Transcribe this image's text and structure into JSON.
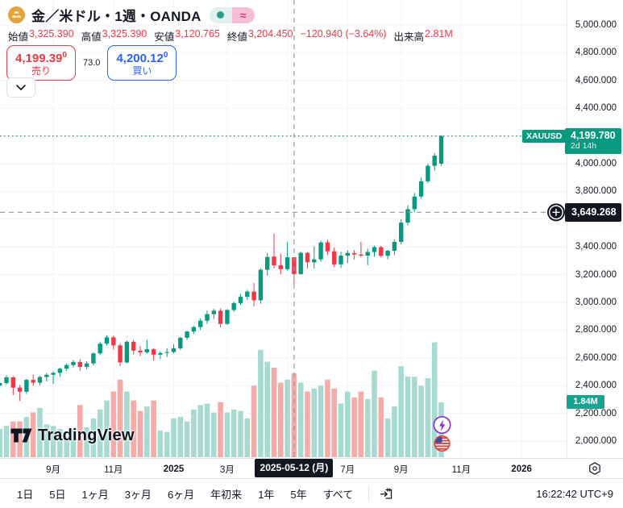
{
  "header": {
    "title": "金／米ドル・1週・OANDA",
    "status": {
      "market_dot_color": "#2A9D8F",
      "delay_symbol": "≈"
    },
    "ohlc": {
      "open_label": "始値",
      "open": "3,325.390",
      "high_label": "高値",
      "high": "3,325.390",
      "low_label": "安値",
      "low": "3,120.765",
      "close_label": "終値",
      "close": "3,204.450",
      "change": "−120.940 (−3.64%)",
      "vol_label": "出来高",
      "vol": "2.81M"
    },
    "quote": {
      "sell_price": "4,199.39",
      "sell_pip": "0",
      "sell_label": "売り",
      "spread": "73.0",
      "buy_price": "4,200.12",
      "buy_pip": "0",
      "buy_label": "買い"
    }
  },
  "watermark": {
    "text": "TradingView"
  },
  "chart_data": {
    "type": "candlestick+volume",
    "symbol": "XAUUSD",
    "timeframe": "1W",
    "exchange": "OANDA",
    "ylim": [
      1950,
      5050
    ],
    "grid_price_step": 200,
    "price_ticks": [
      {
        "p": 5000,
        "label": "5,000.000"
      },
      {
        "p": 4800,
        "label": "4,800.000"
      },
      {
        "p": 4600,
        "label": "4,600.000"
      },
      {
        "p": 4400,
        "label": "4,400.000"
      },
      {
        "p": 4000,
        "label": "4,000.000"
      },
      {
        "p": 3800,
        "label": "3,800.000"
      },
      {
        "p": 3400,
        "label": "3,400.000"
      },
      {
        "p": 3200,
        "label": "3,200.000"
      },
      {
        "p": 3000,
        "label": "3,000.000"
      },
      {
        "p": 2800,
        "label": "2,800.000"
      },
      {
        "p": 2600,
        "label": "2,600.000"
      },
      {
        "p": 2400,
        "label": "2,400.000"
      },
      {
        "p": 2200,
        "label": "2,200.000"
      },
      {
        "p": 2000,
        "label": "2,000.000"
      }
    ],
    "time_ticks": [
      {
        "label": "9月",
        "week": 8,
        "bold": false
      },
      {
        "label": "11月",
        "week": 17,
        "bold": false
      },
      {
        "label": "2025",
        "week": 26,
        "bold": true
      },
      {
        "label": "3月",
        "week": 34,
        "bold": false
      },
      {
        "label": "7月",
        "week": 52,
        "bold": false
      },
      {
        "label": "9月",
        "week": 60,
        "bold": false
      },
      {
        "label": "11月",
        "week": 69,
        "bold": false
      },
      {
        "label": "2026",
        "week": 78,
        "bold": true
      }
    ],
    "grid_weeks": [
      8,
      17,
      26,
      34,
      43,
      52,
      60,
      69,
      78
    ],
    "last": {
      "symbol": "XAUUSD",
      "value": 4199.78,
      "label": "4,199.780",
      "countdown": "2d 14h"
    },
    "crosshair": {
      "week": 44,
      "price": 3649.268,
      "price_label": "3,649.268",
      "date_label": "2025-05-12 (月)"
    },
    "volume_badge": {
      "value": 1.84,
      "label": "1.84M"
    },
    "events": [
      {
        "name": "economic-event-lightning",
        "week": 66
      },
      {
        "name": "economic-event-us-flag",
        "week": 66
      }
    ],
    "candle_columns": [
      "week_start",
      "open",
      "high",
      "low",
      "close",
      "volume_M"
    ],
    "candles": [
      [
        "2024-07-08",
        2400,
        2424,
        2388,
        2418,
        0.95
      ],
      [
        "2024-07-15",
        2418,
        2476,
        2407,
        2459,
        1.05
      ],
      [
        "2024-07-22",
        2459,
        2468,
        2331,
        2385,
        1.2
      ],
      [
        "2024-07-29",
        2385,
        2405,
        2290,
        2356,
        1.2
      ],
      [
        "2024-08-05",
        2356,
        2448,
        2340,
        2441,
        1.35
      ],
      [
        "2024-08-12",
        2441,
        2480,
        2398,
        2421,
        1.5
      ],
      [
        "2024-08-19",
        2421,
        2472,
        2402,
        2462,
        1.65
      ],
      [
        "2024-08-26",
        2462,
        2490,
        2430,
        2478,
        1.1
      ],
      [
        "2024-09-02",
        2478,
        2502,
        2412,
        2492,
        1.05
      ],
      [
        "2024-09-09",
        2492,
        2530,
        2465,
        2522,
        0.95
      ],
      [
        "2024-09-16",
        2522,
        2560,
        2505,
        2548,
        0.7
      ],
      [
        "2024-09-23",
        2548,
        2585,
        2532,
        2570,
        0.95
      ],
      [
        "2024-09-30",
        2570,
        2590,
        2505,
        2535,
        1.75
      ],
      [
        "2024-10-07",
        2535,
        2575,
        2518,
        2560,
        1.0
      ],
      [
        "2024-10-14",
        2560,
        2640,
        2545,
        2632,
        1.3
      ],
      [
        "2024-10-21",
        2632,
        2715,
        2620,
        2702,
        1.6
      ],
      [
        "2024-10-28",
        2702,
        2762,
        2688,
        2748,
        1.9
      ],
      [
        "2024-11-04",
        2748,
        2760,
        2660,
        2690,
        2.2
      ],
      [
        "2024-11-11",
        2690,
        2705,
        2540,
        2567,
        2.6
      ],
      [
        "2024-11-18",
        2567,
        2725,
        2560,
        2716,
        2.2
      ],
      [
        "2024-11-25",
        2716,
        2730,
        2625,
        2652,
        1.9
      ],
      [
        "2024-12-02",
        2652,
        2685,
        2613,
        2640,
        1.55
      ],
      [
        "2024-12-09",
        2640,
        2730,
        2628,
        2662,
        1.7
      ],
      [
        "2024-12-16",
        2662,
        2670,
        2583,
        2623,
        1.9
      ],
      [
        "2024-12-23",
        2623,
        2645,
        2592,
        2635,
        0.9
      ],
      [
        "2024-12-30",
        2635,
        2670,
        2606,
        2642,
        0.85
      ],
      [
        "2025-01-06",
        2642,
        2698,
        2632,
        2669,
        1.3
      ],
      [
        "2025-01-13",
        2669,
        2752,
        2656,
        2745,
        1.35
      ],
      [
        "2025-01-20",
        2745,
        2795,
        2730,
        2790,
        1.2
      ],
      [
        "2025-01-27",
        2790,
        2830,
        2772,
        2822,
        1.6
      ],
      [
        "2025-02-03",
        2822,
        2886,
        2800,
        2868,
        1.75
      ],
      [
        "2025-02-10",
        2868,
        2942,
        2845,
        2915,
        1.8
      ],
      [
        "2025-02-17",
        2915,
        2954,
        2880,
        2940,
        1.5
      ],
      [
        "2025-02-24",
        2940,
        2956,
        2820,
        2845,
        1.85
      ],
      [
        "2025-03-03",
        2845,
        2952,
        2838,
        2945,
        1.5
      ],
      [
        "2025-03-10",
        2945,
        3005,
        2930,
        2995,
        1.6
      ],
      [
        "2025-03-17",
        2995,
        3060,
        2982,
        3040,
        1.55
      ],
      [
        "2025-03-24",
        3040,
        3090,
        3018,
        3078,
        1.3
      ],
      [
        "2025-03-31",
        3078,
        3140,
        2972,
        3015,
        2.4
      ],
      [
        "2025-04-07",
        3015,
        3245,
        2990,
        3235,
        3.6
      ],
      [
        "2025-04-14",
        3235,
        3357,
        3193,
        3327,
        3.2
      ],
      [
        "2025-04-21",
        3330,
        3495,
        3245,
        3267,
        3.0
      ],
      [
        "2025-04-28",
        3267,
        3352,
        3202,
        3240,
        2.5
      ],
      [
        "2025-05-05",
        3240,
        3435,
        3228,
        3325,
        2.6
      ],
      [
        "2025-05-12",
        3325.39,
        3325.39,
        3120.765,
        3204.45,
        2.81
      ],
      [
        "2025-05-19",
        3204.45,
        3366,
        3200,
        3357,
        2.5
      ],
      [
        "2025-05-26",
        3357,
        3365,
        3245,
        3289,
        2.2
      ],
      [
        "2025-06-02",
        3289,
        3403,
        3245,
        3310,
        2.3
      ],
      [
        "2025-06-09",
        3310,
        3446,
        3293,
        3432,
        2.4
      ],
      [
        "2025-06-16",
        3432,
        3452,
        3340,
        3368,
        2.6
      ],
      [
        "2025-06-23",
        3368,
        3395,
        3255,
        3274,
        2.3
      ],
      [
        "2025-06-30",
        3274,
        3365,
        3248,
        3337,
        1.8
      ],
      [
        "2025-07-07",
        3337,
        3375,
        3283,
        3356,
        2.2
      ],
      [
        "2025-07-14",
        3356,
        3377,
        3309,
        3345,
        2.0
      ],
      [
        "2025-07-21",
        3345,
        3438,
        3325,
        3337,
        2.2
      ],
      [
        "2025-07-28",
        3337,
        3386,
        3268,
        3363,
        1.95
      ],
      [
        "2025-08-04",
        3363,
        3409,
        3330,
        3398,
        2.9
      ],
      [
        "2025-08-11",
        3398,
        3408,
        3323,
        3336,
        2.0
      ],
      [
        "2025-08-18",
        3336,
        3380,
        3311,
        3372,
        1.3
      ],
      [
        "2025-08-25",
        3372,
        3454,
        3340,
        3436,
        1.7
      ],
      [
        "2025-09-01",
        3436,
        3600,
        3419,
        3575,
        3.05
      ],
      [
        "2025-09-08",
        3575,
        3700,
        3556,
        3672,
        2.7
      ],
      [
        "2025-09-15",
        3672,
        3790,
        3650,
        3763,
        2.7
      ],
      [
        "2025-09-22",
        3763,
        3900,
        3748,
        3873,
        2.4
      ],
      [
        "2025-09-29",
        3873,
        4000,
        3860,
        3985,
        2.65
      ],
      [
        "2025-10-06",
        3985,
        4076,
        3950,
        4058,
        3.85
      ],
      [
        "2025-10-13",
        4000,
        4205,
        3983,
        4199.78,
        1.84
      ]
    ],
    "colors": {
      "up": "#089981",
      "down": "#F23645",
      "vol_up": "#A7DBD2",
      "vol_down": "#F5ABA8",
      "grid": "#F0F3FA",
      "crosshair": "#9598A1",
      "last_line": "#089981",
      "badge_dark": "#131722"
    }
  },
  "toolbar": {
    "ranges": [
      "1日",
      "5日",
      "1ヶ月",
      "3ヶ月",
      "6ヶ月",
      "年初来",
      "1年",
      "5年",
      "すべて"
    ],
    "clock": "16:22:42 UTC+9"
  }
}
